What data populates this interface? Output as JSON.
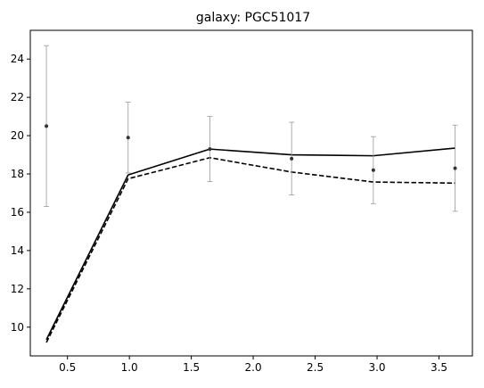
{
  "chart_data": {
    "type": "line",
    "title": "galaxy: PGC51017",
    "xlabel": "",
    "ylabel": "",
    "xlim": [
      0.2,
      3.77
    ],
    "ylim": [
      8.5,
      25.5
    ],
    "xticks": [
      0.5,
      1.0,
      1.5,
      2.0,
      2.5,
      3.0,
      3.5
    ],
    "xtick_labels": [
      "0.5",
      "1.0",
      "1.5",
      "2.0",
      "2.5",
      "3.0",
      "3.5"
    ],
    "yticks": [
      10,
      12,
      14,
      16,
      18,
      20,
      22,
      24
    ],
    "ytick_labels": [
      "10",
      "12",
      "14",
      "16",
      "18",
      "20",
      "22",
      "24"
    ],
    "grid": false,
    "observations": {
      "x": [
        0.33,
        0.99,
        1.65,
        2.31,
        2.97,
        3.63
      ],
      "y": [
        20.5,
        19.9,
        19.3,
        18.8,
        18.2,
        18.3
      ],
      "yerr": [
        4.2,
        1.85,
        1.7,
        1.9,
        1.75,
        2.25
      ],
      "color": "#333333",
      "errorbar_color": "#999999"
    },
    "series": [
      {
        "style": "solid",
        "color": "#000000",
        "x": [
          0.33,
          0.99,
          1.65,
          2.31,
          2.97,
          3.63
        ],
        "y": [
          9.35,
          17.95,
          19.3,
          19.0,
          18.95,
          19.35
        ]
      },
      {
        "style": "dashed",
        "color": "#000000",
        "x": [
          0.33,
          0.99,
          1.65,
          2.31,
          2.97,
          3.63
        ],
        "y": [
          9.2,
          17.75,
          18.85,
          18.1,
          17.58,
          17.52
        ]
      }
    ]
  }
}
